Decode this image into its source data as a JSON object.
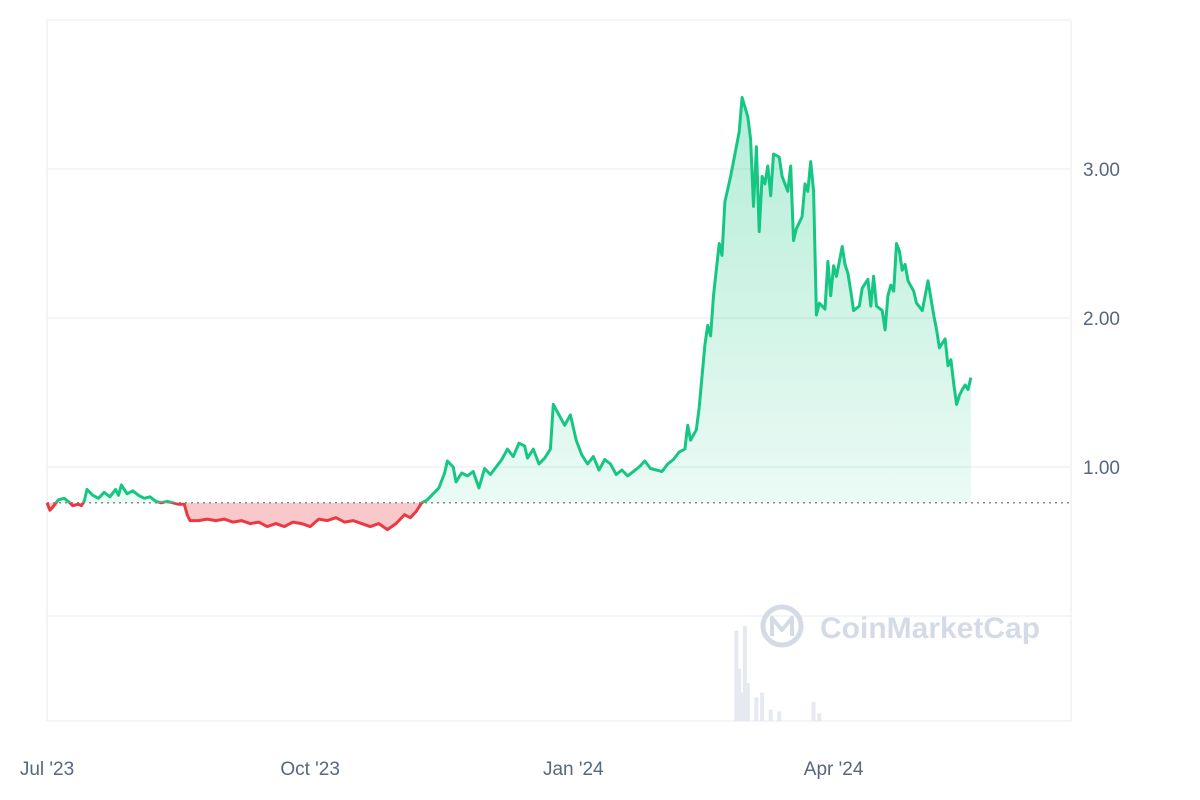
{
  "watermark": {
    "text": "CoinMarketCap",
    "logo_icon": "coinmarketcap-logo-icon"
  },
  "colors": {
    "up": "#16c784",
    "down": "#ea3943",
    "grid": "#eff2f5",
    "baseline": "#888888",
    "tick_text": "#58667e",
    "volume": "#e6eaf0"
  },
  "chart_data": {
    "type": "line",
    "baseline": 0.76,
    "ylim": [
      0,
      4.0
    ],
    "yticks": [
      {
        "value": 1.0,
        "label": "1.00"
      },
      {
        "value": 2.0,
        "label": "2.00"
      },
      {
        "value": 3.0,
        "label": "3.00"
      }
    ],
    "xlim": [
      "2023-07-01",
      "2024-06-23"
    ],
    "xticks": [
      {
        "date": "2023-07-01",
        "label": "Jul '23"
      },
      {
        "date": "2023-10-01",
        "label": "Oct '23"
      },
      {
        "date": "2024-01-01",
        "label": "Jan '24"
      },
      {
        "date": "2024-04-01",
        "label": "Apr '24"
      }
    ],
    "series": [
      {
        "points": [
          [
            "2023-07-01",
            0.76
          ],
          [
            "2023-07-02",
            0.71
          ],
          [
            "2023-07-03",
            0.73
          ],
          [
            "2023-07-05",
            0.78
          ],
          [
            "2023-07-07",
            0.79
          ],
          [
            "2023-07-09",
            0.76
          ],
          [
            "2023-07-10",
            0.74
          ],
          [
            "2023-07-12",
            0.75
          ],
          [
            "2023-07-13",
            0.74
          ],
          [
            "2023-07-14",
            0.77
          ],
          [
            "2023-07-15",
            0.85
          ],
          [
            "2023-07-17",
            0.81
          ],
          [
            "2023-07-19",
            0.79
          ],
          [
            "2023-07-21",
            0.83
          ],
          [
            "2023-07-23",
            0.8
          ],
          [
            "2023-07-25",
            0.85
          ],
          [
            "2023-07-26",
            0.81
          ],
          [
            "2023-07-27",
            0.88
          ],
          [
            "2023-07-29",
            0.82
          ],
          [
            "2023-07-31",
            0.84
          ],
          [
            "2023-08-02",
            0.81
          ],
          [
            "2023-08-04",
            0.79
          ],
          [
            "2023-08-06",
            0.8
          ],
          [
            "2023-08-08",
            0.77
          ],
          [
            "2023-08-10",
            0.76
          ],
          [
            "2023-08-12",
            0.77
          ],
          [
            "2023-08-14",
            0.76
          ],
          [
            "2023-08-16",
            0.75
          ],
          [
            "2023-08-18",
            0.75
          ],
          [
            "2023-08-19",
            0.68
          ],
          [
            "2023-08-20",
            0.64
          ],
          [
            "2023-08-23",
            0.64
          ],
          [
            "2023-08-26",
            0.65
          ],
          [
            "2023-08-29",
            0.64
          ],
          [
            "2023-09-01",
            0.65
          ],
          [
            "2023-09-04",
            0.63
          ],
          [
            "2023-09-07",
            0.64
          ],
          [
            "2023-09-10",
            0.62
          ],
          [
            "2023-09-13",
            0.63
          ],
          [
            "2023-09-16",
            0.6
          ],
          [
            "2023-09-19",
            0.62
          ],
          [
            "2023-09-22",
            0.6
          ],
          [
            "2023-09-25",
            0.63
          ],
          [
            "2023-09-28",
            0.62
          ],
          [
            "2023-10-01",
            0.6
          ],
          [
            "2023-10-04",
            0.65
          ],
          [
            "2023-10-07",
            0.64
          ],
          [
            "2023-10-10",
            0.66
          ],
          [
            "2023-10-13",
            0.63
          ],
          [
            "2023-10-16",
            0.64
          ],
          [
            "2023-10-19",
            0.62
          ],
          [
            "2023-10-22",
            0.6
          ],
          [
            "2023-10-25",
            0.62
          ],
          [
            "2023-10-28",
            0.58
          ],
          [
            "2023-10-31",
            0.62
          ],
          [
            "2023-11-03",
            0.68
          ],
          [
            "2023-11-05",
            0.66
          ],
          [
            "2023-11-07",
            0.7
          ],
          [
            "2023-11-09",
            0.76
          ],
          [
            "2023-11-11",
            0.78
          ],
          [
            "2023-11-13",
            0.82
          ],
          [
            "2023-11-15",
            0.86
          ],
          [
            "2023-11-17",
            0.96
          ],
          [
            "2023-11-18",
            1.04
          ],
          [
            "2023-11-20",
            1.0
          ],
          [
            "2023-11-21",
            0.9
          ],
          [
            "2023-11-23",
            0.96
          ],
          [
            "2023-11-25",
            0.94
          ],
          [
            "2023-11-27",
            0.97
          ],
          [
            "2023-11-29",
            0.86
          ],
          [
            "2023-12-01",
            0.99
          ],
          [
            "2023-12-03",
            0.95
          ],
          [
            "2023-12-05",
            1.0
          ],
          [
            "2023-12-07",
            1.05
          ],
          [
            "2023-12-09",
            1.12
          ],
          [
            "2023-12-11",
            1.07
          ],
          [
            "2023-12-13",
            1.16
          ],
          [
            "2023-12-15",
            1.14
          ],
          [
            "2023-12-16",
            1.06
          ],
          [
            "2023-12-18",
            1.12
          ],
          [
            "2023-12-20",
            1.02
          ],
          [
            "2023-12-22",
            1.06
          ],
          [
            "2023-12-24",
            1.12
          ],
          [
            "2023-12-25",
            1.42
          ],
          [
            "2023-12-27",
            1.35
          ],
          [
            "2023-12-29",
            1.28
          ],
          [
            "2023-12-31",
            1.35
          ],
          [
            "2024-01-02",
            1.18
          ],
          [
            "2024-01-04",
            1.08
          ],
          [
            "2024-01-06",
            1.02
          ],
          [
            "2024-01-08",
            1.07
          ],
          [
            "2024-01-10",
            0.98
          ],
          [
            "2024-01-12",
            1.05
          ],
          [
            "2024-01-14",
            1.02
          ],
          [
            "2024-01-16",
            0.95
          ],
          [
            "2024-01-18",
            0.98
          ],
          [
            "2024-01-20",
            0.94
          ],
          [
            "2024-01-22",
            0.97
          ],
          [
            "2024-01-24",
            1.0
          ],
          [
            "2024-01-26",
            1.04
          ],
          [
            "2024-01-28",
            0.99
          ],
          [
            "2024-01-30",
            0.98
          ],
          [
            "2024-02-01",
            0.97
          ],
          [
            "2024-02-03",
            1.02
          ],
          [
            "2024-02-05",
            1.05
          ],
          [
            "2024-02-07",
            1.1
          ],
          [
            "2024-02-09",
            1.12
          ],
          [
            "2024-02-10",
            1.28
          ],
          [
            "2024-02-11",
            1.18
          ],
          [
            "2024-02-13",
            1.25
          ],
          [
            "2024-02-14",
            1.4
          ],
          [
            "2024-02-16",
            1.82
          ],
          [
            "2024-02-17",
            1.95
          ],
          [
            "2024-02-18",
            1.88
          ],
          [
            "2024-02-19",
            2.15
          ],
          [
            "2024-02-21",
            2.5
          ],
          [
            "2024-02-22",
            2.42
          ],
          [
            "2024-02-23",
            2.78
          ],
          [
            "2024-02-25",
            2.95
          ],
          [
            "2024-02-26",
            3.05
          ],
          [
            "2024-02-28",
            3.25
          ],
          [
            "2024-02-29",
            3.48
          ],
          [
            "2024-03-02",
            3.35
          ],
          [
            "2024-03-03",
            3.2
          ],
          [
            "2024-03-04",
            2.75
          ],
          [
            "2024-03-05",
            3.15
          ],
          [
            "2024-03-06",
            2.58
          ],
          [
            "2024-03-07",
            2.95
          ],
          [
            "2024-03-08",
            2.9
          ],
          [
            "2024-03-09",
            3.02
          ],
          [
            "2024-03-10",
            2.82
          ],
          [
            "2024-03-11",
            3.1
          ],
          [
            "2024-03-13",
            3.08
          ],
          [
            "2024-03-14",
            2.95
          ],
          [
            "2024-03-16",
            2.85
          ],
          [
            "2024-03-17",
            3.02
          ],
          [
            "2024-03-18",
            2.52
          ],
          [
            "2024-03-19",
            2.6
          ],
          [
            "2024-03-21",
            2.68
          ],
          [
            "2024-03-22",
            2.9
          ],
          [
            "2024-03-23",
            2.85
          ],
          [
            "2024-03-24",
            3.05
          ],
          [
            "2024-03-25",
            2.85
          ],
          [
            "2024-03-26",
            2.02
          ],
          [
            "2024-03-27",
            2.1
          ],
          [
            "2024-03-29",
            2.06
          ],
          [
            "2024-03-30",
            2.38
          ],
          [
            "2024-03-31",
            2.15
          ],
          [
            "2024-04-01",
            2.35
          ],
          [
            "2024-04-02",
            2.28
          ],
          [
            "2024-04-04",
            2.48
          ],
          [
            "2024-04-05",
            2.36
          ],
          [
            "2024-04-06",
            2.3
          ],
          [
            "2024-04-07",
            2.18
          ],
          [
            "2024-04-08",
            2.05
          ],
          [
            "2024-04-10",
            2.08
          ],
          [
            "2024-04-11",
            2.2
          ],
          [
            "2024-04-13",
            2.26
          ],
          [
            "2024-04-14",
            2.08
          ],
          [
            "2024-04-15",
            2.28
          ],
          [
            "2024-04-16",
            2.08
          ],
          [
            "2024-04-18",
            2.05
          ],
          [
            "2024-04-19",
            1.92
          ],
          [
            "2024-04-20",
            2.15
          ],
          [
            "2024-04-21",
            2.22
          ],
          [
            "2024-04-22",
            2.18
          ],
          [
            "2024-04-23",
            2.5
          ],
          [
            "2024-04-24",
            2.45
          ],
          [
            "2024-04-25",
            2.32
          ],
          [
            "2024-04-26",
            2.36
          ],
          [
            "2024-04-27",
            2.25
          ],
          [
            "2024-04-29",
            2.18
          ],
          [
            "2024-04-30",
            2.1
          ],
          [
            "2024-05-02",
            2.05
          ],
          [
            "2024-05-04",
            2.25
          ],
          [
            "2024-05-06",
            2.02
          ],
          [
            "2024-05-07",
            1.92
          ],
          [
            "2024-05-08",
            1.8
          ],
          [
            "2024-05-10",
            1.86
          ],
          [
            "2024-05-11",
            1.68
          ],
          [
            "2024-05-12",
            1.72
          ],
          [
            "2024-05-13",
            1.56
          ],
          [
            "2024-05-14",
            1.42
          ],
          [
            "2024-05-15",
            1.48
          ],
          [
            "2024-05-16",
            1.52
          ],
          [
            "2024-05-17",
            1.55
          ],
          [
            "2024-05-18",
            1.52
          ],
          [
            "2024-05-19",
            1.6
          ]
        ]
      }
    ],
    "volume": [
      {
        "date": "2024-02-27",
        "value": 0.95
      },
      {
        "date": "2024-02-28",
        "value": 0.55
      },
      {
        "date": "2024-02-29",
        "value": 0.3
      },
      {
        "date": "2024-03-01",
        "value": 1.0
      },
      {
        "date": "2024-03-02",
        "value": 0.4
      },
      {
        "date": "2024-03-05",
        "value": 0.25
      },
      {
        "date": "2024-03-07",
        "value": 0.3
      },
      {
        "date": "2024-03-10",
        "value": 0.12
      },
      {
        "date": "2024-03-13",
        "value": 0.1
      },
      {
        "date": "2024-03-25",
        "value": 0.2
      },
      {
        "date": "2024-03-27",
        "value": 0.08
      }
    ]
  }
}
